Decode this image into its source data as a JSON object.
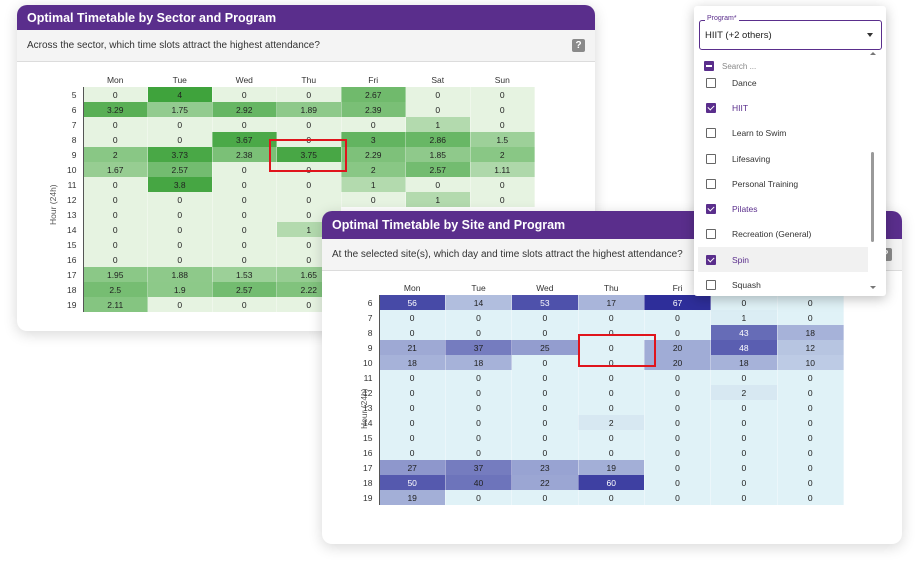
{
  "sector": {
    "title": "Optimal Timetable by Sector and Program",
    "question": "Across the sector, which time slots attract the highest attendance?",
    "help_glyph": "?",
    "ylabel": "Hour (24h)",
    "days": [
      "Mon",
      "Tue",
      "Wed",
      "Thu",
      "Fri",
      "Sat",
      "Sun"
    ],
    "hours": [
      "5",
      "6",
      "7",
      "8",
      "9",
      "10",
      "11",
      "12",
      "13",
      "14",
      "15",
      "16",
      "17",
      "18",
      "19"
    ],
    "values": [
      [
        "0",
        "4",
        "0",
        "0",
        "2.67",
        "0",
        "0"
      ],
      [
        "3.29",
        "1.75",
        "2.92",
        "1.89",
        "2.39",
        "0",
        "0"
      ],
      [
        "0",
        "0",
        "0",
        "0",
        "0",
        "1",
        "0"
      ],
      [
        "0",
        "0",
        "3.67",
        "0",
        "3",
        "2.86",
        "1.5"
      ],
      [
        "2",
        "3.73",
        "2.38",
        "3.75",
        "2.29",
        "1.85",
        "2"
      ],
      [
        "1.67",
        "2.57",
        "0",
        "0",
        "2",
        "2.57",
        "1.11"
      ],
      [
        "0",
        "3.8",
        "0",
        "0",
        "1",
        "0",
        "0"
      ],
      [
        "0",
        "0",
        "0",
        "0",
        "0",
        "1",
        "0"
      ],
      [
        "0",
        "0",
        "0",
        "0",
        "",
        "",
        ""
      ],
      [
        "0",
        "0",
        "0",
        "1",
        "",
        "",
        ""
      ],
      [
        "0",
        "0",
        "0",
        "0",
        "",
        "",
        ""
      ],
      [
        "0",
        "0",
        "0",
        "0",
        "",
        "",
        ""
      ],
      [
        "1.95",
        "1.88",
        "1.53",
        "1.65",
        "",
        "",
        ""
      ],
      [
        "2.5",
        "1.9",
        "2.57",
        "2.22",
        "",
        "",
        ""
      ],
      [
        "2.11",
        "0",
        "0",
        "0",
        "",
        "",
        ""
      ]
    ],
    "highlight": {
      "day": "Thu",
      "hour": "9"
    },
    "colors": {
      "low": "#e6f3e1",
      "high": "#3fa33c"
    }
  },
  "site": {
    "title": "Optimal Timetable by Site and Program",
    "question": "At the selected site(s), which day and time slots attract the highest attendance?",
    "help_glyph": "?",
    "ylabel": "Hour (24h)",
    "days": [
      "Mon",
      "Tue",
      "Wed",
      "Thu",
      "Fri",
      "Sat",
      "Sun"
    ],
    "hours": [
      "6",
      "7",
      "8",
      "9",
      "10",
      "11",
      "12",
      "13",
      "14",
      "15",
      "16",
      "17",
      "18",
      "19"
    ],
    "values": [
      [
        "56",
        "14",
        "53",
        "17",
        "67",
        "0",
        "0"
      ],
      [
        "0",
        "0",
        "0",
        "0",
        "0",
        "1",
        "0"
      ],
      [
        "0",
        "0",
        "0",
        "0",
        "0",
        "43",
        "18"
      ],
      [
        "21",
        "37",
        "25",
        "0",
        "20",
        "48",
        "12"
      ],
      [
        "18",
        "18",
        "0",
        "0",
        "20",
        "18",
        "10"
      ],
      [
        "0",
        "0",
        "0",
        "0",
        "0",
        "0",
        "0"
      ],
      [
        "0",
        "0",
        "0",
        "0",
        "0",
        "2",
        "0"
      ],
      [
        "0",
        "0",
        "0",
        "0",
        "0",
        "0",
        "0"
      ],
      [
        "0",
        "0",
        "0",
        "2",
        "0",
        "0",
        "0"
      ],
      [
        "0",
        "0",
        "0",
        "0",
        "0",
        "0",
        "0"
      ],
      [
        "0",
        "0",
        "0",
        "0",
        "0",
        "0",
        "0"
      ],
      [
        "27",
        "37",
        "23",
        "19",
        "0",
        "0",
        "0"
      ],
      [
        "50",
        "40",
        "22",
        "60",
        "0",
        "0",
        "0"
      ],
      [
        "19",
        "0",
        "0",
        "0",
        "0",
        "0",
        "0"
      ]
    ],
    "highlight": {
      "day": "Thu",
      "hour": "9"
    },
    "colors": {
      "low": "#e0f2f7",
      "high": "#2e2e9a"
    }
  },
  "program_filter": {
    "legend": "Program*",
    "value": "HIIT (+2 others)",
    "search_placeholder": "Search ...",
    "options": [
      {
        "label": "Dance",
        "checked": false
      },
      {
        "label": "HIIT",
        "checked": true
      },
      {
        "label": "Learn to Swim",
        "checked": false
      },
      {
        "label": "Lifesaving",
        "checked": false
      },
      {
        "label": "Personal Training",
        "checked": false
      },
      {
        "label": "Pilates",
        "checked": true
      },
      {
        "label": "Recreation (General)",
        "checked": false
      },
      {
        "label": "Spin",
        "checked": true
      },
      {
        "label": "Squash",
        "checked": false
      }
    ],
    "hovered": "Spin",
    "accent": "#5a2e8c"
  }
}
